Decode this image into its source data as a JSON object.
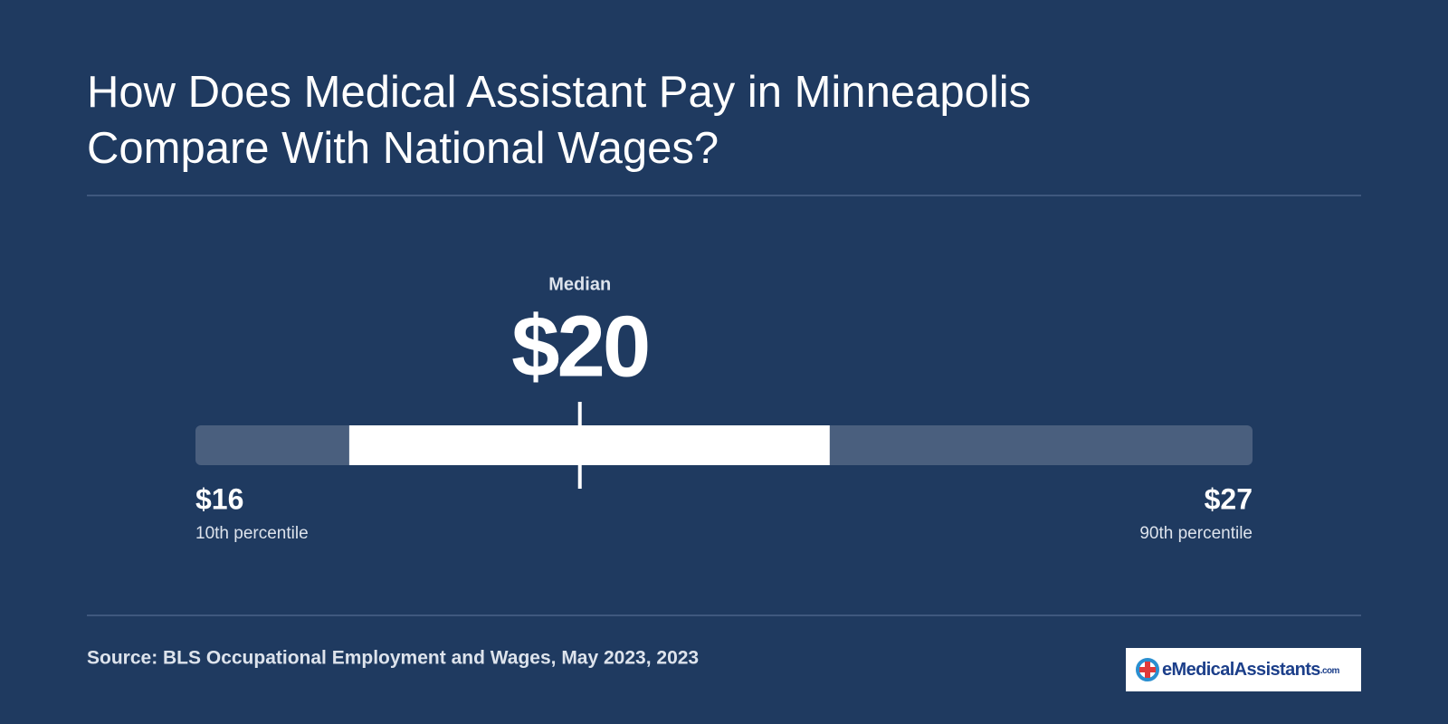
{
  "chart_data": {
    "type": "range",
    "title_lines": [
      "How Does Medical Assistant Pay in Minneapolis",
      "Compare With National Wages?"
    ],
    "median": {
      "name": "Median",
      "value": 20,
      "label": "$20"
    },
    "low": {
      "value": 16,
      "label": "$16",
      "name": "10th percentile"
    },
    "high": {
      "value": 27,
      "label": "$27",
      "name": "90th percentile"
    },
    "interval": [
      17.6,
      22.6
    ],
    "track_color": "#4a5f7e",
    "interval_color": "#ffffff",
    "source": "Source: BLS Occupational Employment and Wages, May 2023, 2023"
  },
  "logo": {
    "name": "eMedicalAssistants",
    "domain": ".com"
  }
}
